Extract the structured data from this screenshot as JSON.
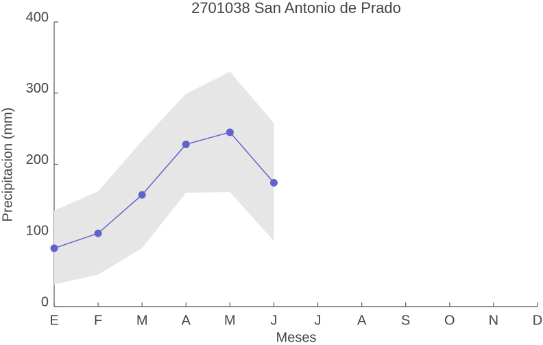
{
  "chart_data": {
    "type": "line",
    "title": "2701038 San Antonio de Prado",
    "xlabel": "Meses",
    "ylabel": "Precipitacion (mm)",
    "categories": [
      "E",
      "F",
      "M",
      "A",
      "M",
      "J",
      "J",
      "A",
      "S",
      "O",
      "N",
      "D"
    ],
    "values": [
      82,
      103,
      157,
      228,
      245,
      174,
      null,
      null,
      null,
      null,
      null,
      null
    ],
    "color": "#6262cc",
    "band": {
      "upper": [
        135,
        162,
        233,
        299,
        330,
        258,
        null,
        null,
        null,
        null,
        null,
        null
      ],
      "lower": [
        31,
        45,
        82,
        160,
        161,
        92,
        null,
        null,
        null,
        null,
        null,
        null
      ],
      "color": "#e6e6e6"
    },
    "ylim": [
      0,
      400
    ],
    "yticks": [
      0,
      100,
      200,
      300,
      400
    ]
  }
}
